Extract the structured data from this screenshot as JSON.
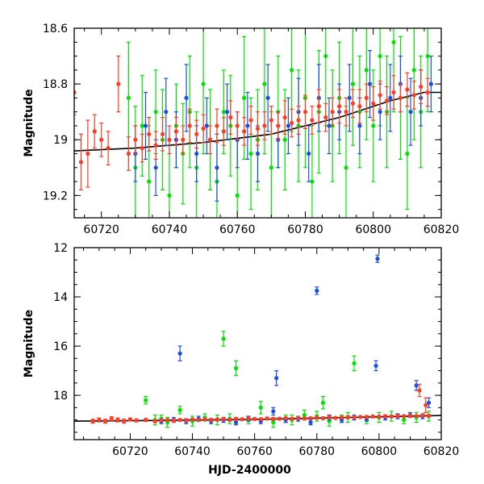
{
  "chart_data": [
    {
      "type": "scatter",
      "panel": "top",
      "ylabel": "Magnitude",
      "xlabel": "",
      "xlim": [
        60712,
        60820
      ],
      "ylim": [
        18.6,
        19.28
      ],
      "y_inverted": true,
      "xticks": [
        60720,
        60740,
        60760,
        60780,
        60800,
        60820
      ],
      "yticks": [
        18.6,
        18.8,
        19,
        19.2
      ],
      "ytick_labels": [
        "18.6",
        "18.8",
        "19",
        "19.2"
      ],
      "model_curve": {
        "color": "#000000",
        "x": [
          60712,
          60730,
          60750,
          60770,
          60790,
          60805,
          60815,
          60820
        ],
        "y": [
          19.04,
          19.03,
          19.01,
          18.98,
          18.92,
          18.86,
          18.83,
          18.83
        ]
      },
      "series": [
        {
          "color": "#00e400",
          "x": [
            60728,
            60730,
            60732,
            60734,
            60736,
            60738,
            60740,
            60742,
            60744,
            60746,
            60748,
            60750,
            60752,
            60754,
            60756,
            60758,
            60760,
            60762,
            60764,
            60766,
            60768,
            60770,
            60772,
            60774,
            60776,
            60778,
            60780,
            60782,
            60784,
            60786,
            60788,
            60790,
            60792,
            60794,
            60796,
            60798,
            60800,
            60802,
            60804,
            60806,
            60808,
            60810,
            60812,
            60814,
            60816
          ],
          "y": [
            18.85,
            19.1,
            18.95,
            19.15,
            18.9,
            19.0,
            19.2,
            18.95,
            19.05,
            18.9,
            19.1,
            18.8,
            19.0,
            19.15,
            18.9,
            18.95,
            19.2,
            18.85,
            19.05,
            19.0,
            18.8,
            19.1,
            18.9,
            19.0,
            18.75,
            18.95,
            18.85,
            19.15,
            18.9,
            18.7,
            18.95,
            18.85,
            19.1,
            18.8,
            18.9,
            18.75,
            18.95,
            18.7,
            18.9,
            18.65,
            18.85,
            19.05,
            18.75,
            18.9,
            18.7
          ],
          "yerr": [
            0.2,
            0.22,
            0.18,
            0.2,
            0.15,
            0.18,
            0.2,
            0.15,
            0.18,
            0.2,
            0.2,
            0.25,
            0.18,
            0.2,
            0.15,
            0.18,
            0.2,
            0.22,
            0.2,
            0.18,
            0.25,
            0.2,
            0.2,
            0.18,
            0.22,
            0.2,
            0.25,
            0.2,
            0.22,
            0.25,
            0.2,
            0.2,
            0.22,
            0.22,
            0.2,
            0.25,
            0.2,
            0.25,
            0.2,
            0.25,
            0.22,
            0.2,
            0.25,
            0.2,
            0.2
          ]
        },
        {
          "color": "#1a4fe6",
          "x": [
            60730,
            60733,
            60736,
            60739,
            60742,
            60745,
            60748,
            60751,
            60754,
            60757,
            60760,
            60763,
            60766,
            60769,
            60772,
            60775,
            60778,
            60781,
            60784,
            60787,
            60790,
            60793,
            60796,
            60799,
            60802,
            60805,
            60808,
            60811,
            60814,
            60817
          ],
          "y": [
            19.05,
            18.95,
            19.1,
            18.9,
            19.0,
            18.85,
            19.05,
            18.95,
            19.1,
            18.9,
            19.0,
            18.95,
            19.05,
            18.85,
            19.0,
            18.95,
            18.9,
            19.05,
            18.85,
            18.95,
            18.9,
            18.85,
            18.95,
            18.8,
            18.9,
            18.85,
            18.8,
            18.9,
            18.85,
            18.8
          ],
          "yerr": [
            0.1,
            0.12,
            0.1,
            0.12,
            0.1,
            0.12,
            0.1,
            0.1,
            0.12,
            0.1,
            0.1,
            0.12,
            0.1,
            0.12,
            0.1,
            0.1,
            0.12,
            0.1,
            0.12,
            0.1,
            0.1,
            0.12,
            0.1,
            0.12,
            0.1,
            0.12,
            0.1,
            0.12,
            0.1,
            0.1
          ]
        },
        {
          "color": "#ff3b24",
          "x": [
            60712,
            60714,
            60716,
            60718,
            60720,
            60722,
            60725,
            60728,
            60730,
            60732,
            60734,
            60736,
            60738,
            60740,
            60742,
            60744,
            60746,
            60748,
            60750,
            60752,
            60754,
            60756,
            60758,
            60760,
            60762,
            60764,
            60766,
            60768,
            60770,
            60772,
            60774,
            60776,
            60778,
            60780,
            60782,
            60784,
            60786,
            60788,
            60790,
            60792,
            60794,
            60796,
            60798,
            60800,
            60802,
            60804,
            60806,
            60808,
            60810,
            60812,
            60814,
            60816
          ],
          "y": [
            18.83,
            19.08,
            19.05,
            18.97,
            19.0,
            19.03,
            18.8,
            19.05,
            19.0,
            19.03,
            18.98,
            19.02,
            18.98,
            19.0,
            18.97,
            19.0,
            18.95,
            18.98,
            18.96,
            19.0,
            18.95,
            18.97,
            18.92,
            18.95,
            18.97,
            18.93,
            18.96,
            18.95,
            18.93,
            18.95,
            18.92,
            18.94,
            18.93,
            18.9,
            18.93,
            18.88,
            18.92,
            18.9,
            18.88,
            18.9,
            18.87,
            18.88,
            18.85,
            18.87,
            18.84,
            18.86,
            18.83,
            18.85,
            18.82,
            18.84,
            18.81,
            18.83
          ],
          "yerr": [
            0.08,
            0.1,
            0.12,
            0.06,
            0.06,
            0.06,
            0.1,
            0.06,
            0.05,
            0.05,
            0.06,
            0.05,
            0.06,
            0.05,
            0.05,
            0.05,
            0.06,
            0.05,
            0.05,
            0.05,
            0.06,
            0.05,
            0.06,
            0.05,
            0.05,
            0.05,
            0.06,
            0.05,
            0.05,
            0.05,
            0.06,
            0.05,
            0.05,
            0.06,
            0.05,
            0.06,
            0.05,
            0.05,
            0.06,
            0.05,
            0.05,
            0.06,
            0.05,
            0.06,
            0.05,
            0.05,
            0.06,
            0.05,
            0.06,
            0.05,
            0.06,
            0.05
          ]
        }
      ]
    },
    {
      "type": "scatter",
      "panel": "bottom",
      "ylabel": "Magnitude",
      "xlabel": "HJD-2400000",
      "xlim": [
        60702,
        60820
      ],
      "ylim": [
        12,
        19.8
      ],
      "y_inverted": true,
      "xticks": [
        60720,
        60740,
        60760,
        60780,
        60800,
        60820
      ],
      "yticks": [
        12,
        14,
        16,
        18
      ],
      "ytick_labels": [
        "12",
        "14",
        "16",
        "18"
      ],
      "model_curve": {
        "color": "#000000",
        "x": [
          60702,
          60730,
          60760,
          60790,
          60820
        ],
        "y": [
          19.05,
          19.02,
          18.98,
          18.9,
          18.82
        ]
      },
      "series": [
        {
          "color": "#00e400",
          "x": [
            60725,
            60728,
            60730,
            60732,
            60736,
            60740,
            60744,
            60748,
            60750,
            60752,
            60754,
            60758,
            60762,
            60766,
            60770,
            60772,
            60776,
            60780,
            60782,
            60784,
            60788,
            60790,
            60792,
            60796,
            60800,
            60804,
            60808,
            60812,
            60816
          ],
          "y": [
            18.2,
            19.0,
            18.95,
            19.1,
            18.6,
            19.05,
            18.9,
            19.0,
            15.7,
            18.95,
            16.9,
            19.0,
            18.5,
            19.1,
            18.95,
            19.0,
            18.8,
            18.85,
            18.3,
            19.05,
            18.95,
            18.9,
            16.7,
            19.0,
            18.9,
            18.85,
            19.0,
            18.9,
            18.85
          ],
          "yerr": [
            0.15,
            0.2,
            0.15,
            0.2,
            0.15,
            0.2,
            0.15,
            0.2,
            0.3,
            0.2,
            0.3,
            0.15,
            0.25,
            0.2,
            0.15,
            0.2,
            0.2,
            0.2,
            0.25,
            0.2,
            0.15,
            0.2,
            0.3,
            0.15,
            0.2,
            0.2,
            0.15,
            0.2,
            0.2
          ]
        },
        {
          "color": "#1a4fe6",
          "x": [
            60730,
            60734,
            60736,
            60738,
            60742,
            60746,
            60750,
            60754,
            60758,
            60762,
            60766,
            60767,
            60770,
            60774,
            60778,
            60780,
            60784,
            60788,
            60792,
            60796,
            60799,
            60799.5,
            60802,
            60806,
            60810,
            60812,
            60814,
            60816
          ],
          "y": [
            19.05,
            19.0,
            16.3,
            19.05,
            18.95,
            19.05,
            19.0,
            19.1,
            18.95,
            19.05,
            18.65,
            17.3,
            19.0,
            18.95,
            19.1,
            13.75,
            18.9,
            19.0,
            18.9,
            18.95,
            16.8,
            12.45,
            18.9,
            18.85,
            18.8,
            17.6,
            18.85,
            18.3
          ],
          "yerr": [
            0.1,
            0.1,
            0.3,
            0.1,
            0.1,
            0.1,
            0.1,
            0.1,
            0.1,
            0.1,
            0.15,
            0.3,
            0.1,
            0.1,
            0.1,
            0.15,
            0.1,
            0.1,
            0.1,
            0.1,
            0.2,
            0.15,
            0.1,
            0.1,
            0.1,
            0.2,
            0.1,
            0.2
          ]
        },
        {
          "color": "#ff3b24",
          "x": [
            60708,
            60710,
            60712,
            60714,
            60716,
            60718,
            60720,
            60722,
            60725,
            60728,
            60730,
            60732,
            60734,
            60736,
            60738,
            60740,
            60742,
            60744,
            60746,
            60748,
            60750,
            60752,
            60754,
            60756,
            60758,
            60760,
            60762,
            60764,
            60766,
            60768,
            60770,
            60772,
            60774,
            60776,
            60778,
            60780,
            60782,
            60784,
            60786,
            60788,
            60790,
            60792,
            60794,
            60796,
            60798,
            60800,
            60802,
            60804,
            60806,
            60808,
            60810,
            60812,
            60813,
            60814,
            60815,
            60816
          ],
          "y": [
            19.05,
            19.0,
            19.05,
            18.95,
            19.0,
            19.05,
            18.98,
            19.02,
            19.0,
            19.05,
            19.02,
            19.0,
            19.03,
            19.0,
            19.02,
            18.98,
            19.0,
            18.97,
            19.0,
            18.98,
            18.96,
            19.0,
            18.96,
            18.97,
            18.94,
            18.96,
            18.97,
            18.94,
            18.96,
            18.95,
            18.93,
            18.95,
            18.92,
            18.94,
            18.93,
            18.91,
            18.93,
            18.89,
            18.92,
            18.9,
            18.89,
            18.9,
            18.88,
            18.88,
            18.86,
            18.87,
            18.85,
            18.86,
            18.84,
            18.85,
            18.83,
            18.84,
            17.8,
            18.82,
            18.4,
            18.83
          ],
          "yerr": [
            0.08,
            0.08,
            0.08,
            0.08,
            0.08,
            0.08,
            0.06,
            0.06,
            0.06,
            0.06,
            0.05,
            0.05,
            0.06,
            0.05,
            0.06,
            0.05,
            0.05,
            0.05,
            0.06,
            0.05,
            0.05,
            0.05,
            0.06,
            0.05,
            0.06,
            0.05,
            0.05,
            0.05,
            0.06,
            0.05,
            0.05,
            0.05,
            0.06,
            0.05,
            0.05,
            0.06,
            0.05,
            0.06,
            0.05,
            0.05,
            0.06,
            0.05,
            0.05,
            0.06,
            0.05,
            0.06,
            0.05,
            0.05,
            0.06,
            0.05,
            0.06,
            0.05,
            0.25,
            0.06,
            0.3,
            0.05
          ]
        }
      ]
    }
  ]
}
